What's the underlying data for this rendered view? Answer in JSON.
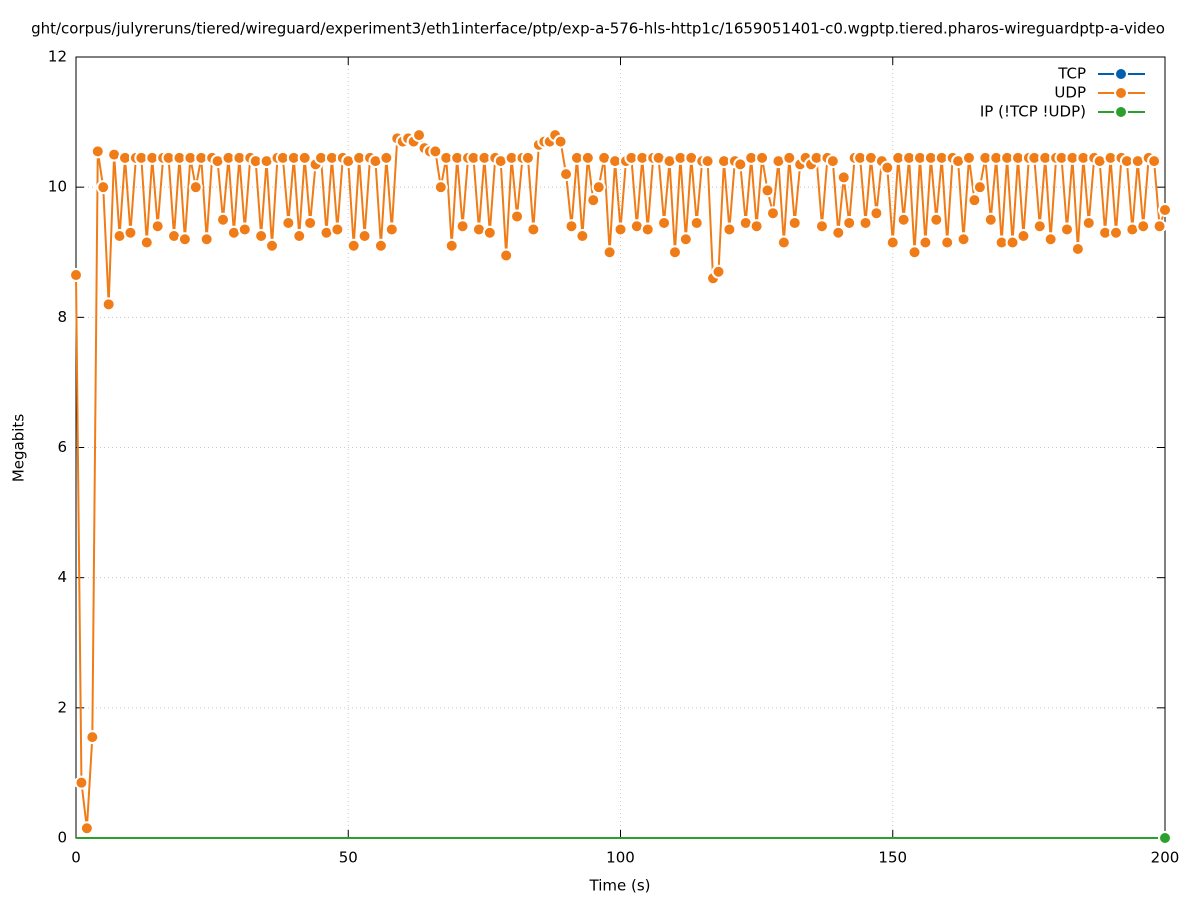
{
  "chart_data": {
    "type": "line",
    "title": "ght/corpus/julyreruns/tiered/wireguard/experiment3/eth1interface/ptp/exp-a-576-hls-http1c/1659051401-c0.wgptp.tiered.pharos-wireguardptp-a-video",
    "xlabel": "Time (s)",
    "ylabel": "Megabits",
    "xlim": [
      0,
      200
    ],
    "xticks": [
      0,
      50,
      100,
      150,
      200
    ],
    "ylim": [
      0,
      12
    ],
    "yticks": [
      0,
      2,
      4,
      6,
      8,
      10,
      12
    ],
    "grid": true,
    "legend": "top-right",
    "x": [
      0,
      1,
      2,
      3,
      4,
      5,
      6,
      7,
      8,
      9,
      10,
      11,
      12,
      13,
      14,
      15,
      16,
      17,
      18,
      19,
      20,
      21,
      22,
      23,
      24,
      25,
      26,
      27,
      28,
      29,
      30,
      31,
      32,
      33,
      34,
      35,
      36,
      37,
      38,
      39,
      40,
      41,
      42,
      43,
      44,
      45,
      46,
      47,
      48,
      49,
      50,
      51,
      52,
      53,
      54,
      55,
      56,
      57,
      58,
      59,
      60,
      61,
      62,
      63,
      64,
      65,
      66,
      67,
      68,
      69,
      70,
      71,
      72,
      73,
      74,
      75,
      76,
      77,
      78,
      79,
      80,
      81,
      82,
      83,
      84,
      85,
      86,
      87,
      88,
      89,
      90,
      91,
      92,
      93,
      94,
      95,
      96,
      97,
      98,
      99,
      100,
      101,
      102,
      103,
      104,
      105,
      106,
      107,
      108,
      109,
      110,
      111,
      112,
      113,
      114,
      115,
      116,
      117,
      118,
      119,
      120,
      121,
      122,
      123,
      124,
      125,
      126,
      127,
      128,
      129,
      130,
      131,
      132,
      133,
      134,
      135,
      136,
      137,
      138,
      139,
      140,
      141,
      142,
      143,
      144,
      145,
      146,
      147,
      148,
      149,
      150,
      151,
      152,
      153,
      154,
      155,
      156,
      157,
      158,
      159,
      160,
      161,
      162,
      163,
      164,
      165,
      166,
      167,
      168,
      169,
      170,
      171,
      172,
      173,
      174,
      175,
      176,
      177,
      178,
      179,
      180,
      181,
      182,
      183,
      184,
      185,
      186,
      187,
      188,
      189,
      190,
      191,
      192,
      193,
      194,
      195,
      196,
      197,
      198,
      199,
      200
    ],
    "series": [
      {
        "name": "TCP",
        "color": "#0060ad",
        "values": [
          0,
          0,
          0,
          0,
          0,
          0,
          0,
          0,
          0,
          0,
          0,
          0,
          0,
          0,
          0,
          0,
          0,
          0,
          0,
          0,
          0,
          0,
          0,
          0,
          0,
          0,
          0,
          0,
          0,
          0,
          0,
          0,
          0,
          0,
          0,
          0,
          0,
          0,
          0,
          0,
          0,
          0,
          0,
          0,
          0,
          0,
          0,
          0,
          0,
          0,
          0,
          0,
          0,
          0,
          0,
          0,
          0,
          0,
          0,
          0,
          0,
          0,
          0,
          0,
          0,
          0,
          0,
          0,
          0,
          0,
          0,
          0,
          0,
          0,
          0,
          0,
          0,
          0,
          0,
          0,
          0,
          0,
          0,
          0,
          0,
          0,
          0,
          0,
          0,
          0,
          0,
          0,
          0,
          0,
          0,
          0,
          0,
          0,
          0,
          0,
          0,
          0,
          0,
          0,
          0,
          0,
          0,
          0,
          0,
          0,
          0,
          0,
          0,
          0,
          0,
          0,
          0,
          0,
          0,
          0,
          0,
          0,
          0,
          0,
          0,
          0,
          0,
          0,
          0,
          0,
          0,
          0,
          0,
          0,
          0,
          0,
          0,
          0,
          0,
          0,
          0,
          0,
          0,
          0,
          0,
          0,
          0,
          0,
          0,
          0,
          0,
          0,
          0,
          0,
          0,
          0,
          0,
          0,
          0,
          0,
          0,
          0,
          0,
          0,
          0,
          0,
          0,
          0,
          0,
          0,
          0,
          0,
          0,
          0,
          0,
          0,
          0,
          0,
          0,
          0,
          0,
          0,
          0,
          0,
          0,
          0,
          0,
          0,
          0,
          0,
          0,
          0,
          0,
          0,
          0,
          0,
          0,
          0,
          0,
          0,
          0
        ]
      },
      {
        "name": "UDP",
        "color": "#f07c17",
        "values": [
          8.65,
          0.85,
          0.15,
          1.55,
          10.55,
          10.0,
          8.2,
          10.5,
          9.25,
          10.45,
          9.3,
          10.45,
          10.45,
          9.15,
          10.45,
          9.4,
          10.45,
          10.45,
          9.25,
          10.45,
          9.2,
          10.45,
          10.0,
          10.45,
          9.2,
          10.45,
          10.4,
          9.5,
          10.45,
          9.3,
          10.45,
          9.35,
          10.45,
          10.4,
          9.25,
          10.4,
          9.1,
          10.45,
          10.45,
          9.45,
          10.45,
          9.25,
          10.45,
          9.45,
          10.35,
          10.45,
          9.3,
          10.45,
          9.35,
          10.45,
          10.4,
          9.1,
          10.45,
          9.25,
          10.45,
          10.4,
          9.1,
          10.45,
          9.35,
          10.75,
          10.7,
          10.75,
          10.7,
          10.8,
          10.6,
          10.55,
          10.55,
          10.0,
          10.45,
          9.1,
          10.45,
          9.4,
          10.45,
          10.45,
          9.35,
          10.45,
          9.3,
          10.45,
          10.4,
          8.95,
          10.45,
          9.55,
          10.45,
          10.45,
          9.35,
          10.65,
          10.7,
          10.7,
          10.8,
          10.7,
          10.2,
          9.4,
          10.45,
          9.25,
          10.45,
          9.8,
          10.0,
          10.45,
          9.0,
          10.4,
          9.35,
          10.4,
          10.45,
          9.4,
          10.45,
          9.35,
          10.45,
          10.45,
          9.45,
          10.4,
          9.0,
          10.45,
          9.2,
          10.45,
          9.45,
          10.4,
          10.4,
          8.6,
          8.7,
          10.4,
          9.35,
          10.4,
          10.35,
          9.45,
          10.45,
          9.4,
          10.45,
          9.95,
          9.6,
          10.4,
          9.15,
          10.45,
          9.45,
          10.35,
          10.45,
          10.35,
          10.45,
          9.4,
          10.45,
          10.4,
          9.3,
          10.15,
          9.45,
          10.45,
          10.45,
          9.45,
          10.45,
          9.6,
          10.4,
          10.3,
          9.15,
          10.45,
          9.5,
          10.45,
          9.0,
          10.45,
          9.15,
          10.45,
          9.5,
          10.45,
          9.15,
          10.45,
          10.4,
          9.2,
          10.45,
          9.8,
          10.0,
          10.45,
          9.5,
          10.45,
          9.15,
          10.45,
          9.15,
          10.45,
          9.25,
          10.45,
          10.45,
          9.4,
          10.45,
          9.2,
          10.45,
          10.45,
          9.35,
          10.45,
          9.05,
          10.45,
          9.45,
          10.45,
          10.4,
          9.3,
          10.45,
          9.3,
          10.45,
          10.4,
          9.35,
          10.4,
          9.4,
          10.45,
          10.4,
          9.4,
          9.65
        ]
      },
      {
        "name": "IP (!TCP  !UDP)",
        "color": "#2ca02c",
        "values": [
          0,
          0,
          0,
          0,
          0,
          0,
          0,
          0,
          0,
          0,
          0,
          0,
          0,
          0,
          0,
          0,
          0,
          0,
          0,
          0,
          0,
          0,
          0,
          0,
          0,
          0,
          0,
          0,
          0,
          0,
          0,
          0,
          0,
          0,
          0,
          0,
          0,
          0,
          0,
          0,
          0,
          0,
          0,
          0,
          0,
          0,
          0,
          0,
          0,
          0,
          0,
          0,
          0,
          0,
          0,
          0,
          0,
          0,
          0,
          0,
          0,
          0,
          0,
          0,
          0,
          0,
          0,
          0,
          0,
          0,
          0,
          0,
          0,
          0,
          0,
          0,
          0,
          0,
          0,
          0,
          0,
          0,
          0,
          0,
          0,
          0,
          0,
          0,
          0,
          0,
          0,
          0,
          0,
          0,
          0,
          0,
          0,
          0,
          0,
          0,
          0,
          0,
          0,
          0,
          0,
          0,
          0,
          0,
          0,
          0,
          0,
          0,
          0,
          0,
          0,
          0,
          0,
          0,
          0,
          0,
          0,
          0,
          0,
          0,
          0,
          0,
          0,
          0,
          0,
          0,
          0,
          0,
          0,
          0,
          0,
          0,
          0,
          0,
          0,
          0,
          0,
          0,
          0,
          0,
          0,
          0,
          0,
          0,
          0,
          0,
          0,
          0,
          0,
          0,
          0,
          0,
          0,
          0,
          0,
          0,
          0,
          0,
          0,
          0,
          0,
          0,
          0,
          0,
          0,
          0,
          0,
          0,
          0,
          0,
          0,
          0,
          0,
          0,
          0,
          0,
          0,
          0,
          0,
          0,
          0,
          0,
          0,
          0,
          0,
          0,
          0,
          0,
          0,
          0,
          0,
          0,
          0,
          0,
          0,
          0,
          0
        ]
      }
    ]
  }
}
